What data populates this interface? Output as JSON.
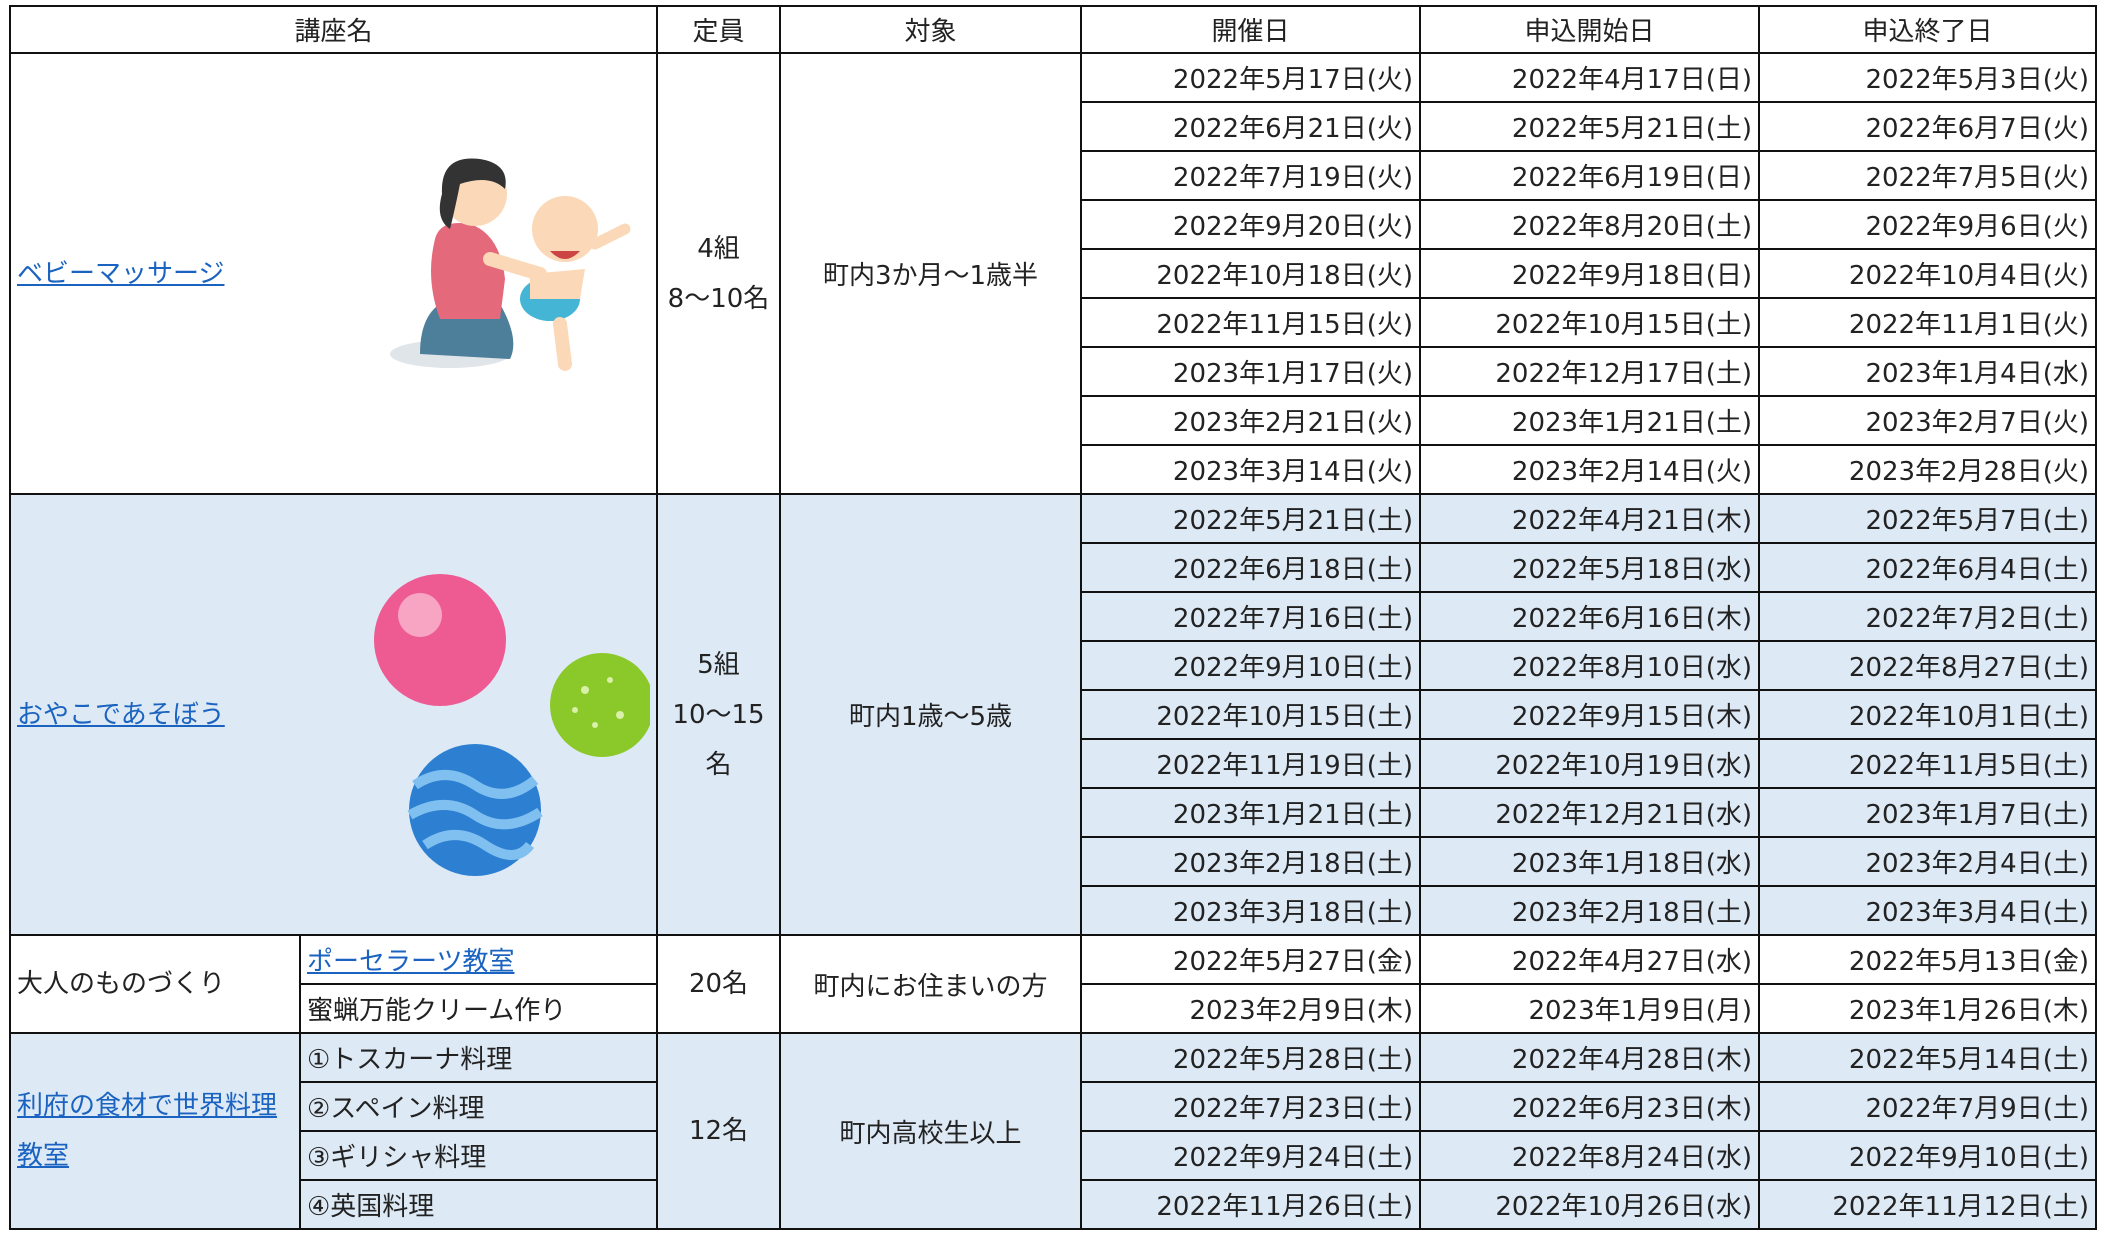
{
  "table": {
    "columns": [
      "講座名",
      "定員",
      "対象",
      "開催日",
      "申込開始日",
      "申込終了日"
    ],
    "courses": [
      {
        "name": "ベビーマッサージ",
        "link": true,
        "color": "#ffffff",
        "capacity": [
          "4組",
          "8～10名"
        ],
        "target": "町内3か月～1歳半",
        "sessions": [
          [
            "2022年5月17日(火)",
            "2022年4月17日(日)",
            "2022年5月3日(火)"
          ],
          [
            "2022年6月21日(火)",
            "2022年5月21日(土)",
            "2022年6月7日(火)"
          ],
          [
            "2022年7月19日(火)",
            "2022年6月19日(日)",
            "2022年7月5日(火)"
          ],
          [
            "2022年9月20日(火)",
            "2022年8月20日(土)",
            "2022年9月6日(火)"
          ],
          [
            "2022年10月18日(火)",
            "2022年9月18日(日)",
            "2022年10月4日(火)"
          ],
          [
            "2022年11月15日(火)",
            "2022年10月15日(土)",
            "2022年11月1日(火)"
          ],
          [
            "2023年1月17日(火)",
            "2022年12月17日(土)",
            "2023年1月4日(水)"
          ],
          [
            "2023年2月21日(火)",
            "2023年1月21日(土)",
            "2023年2月7日(火)"
          ],
          [
            "2023年3月14日(火)",
            "2023年2月14日(火)",
            "2023年2月28日(火)"
          ]
        ]
      },
      {
        "name": "おやこであそぼう",
        "link": true,
        "color": "#dde9f5",
        "capacity": [
          "5組",
          "10～15",
          "名"
        ],
        "target": "町内1歳～5歳",
        "sessions": [
          [
            "2022年5月21日(土)",
            "2022年4月21日(木)",
            "2022年5月7日(土)"
          ],
          [
            "2022年6月18日(土)",
            "2022年5月18日(水)",
            "2022年6月4日(土)"
          ],
          [
            "2022年7月16日(土)",
            "2022年6月16日(木)",
            "2022年7月2日(土)"
          ],
          [
            "2022年9月10日(土)",
            "2022年8月10日(水)",
            "2022年8月27日(土)"
          ],
          [
            "2022年10月15日(土)",
            "2022年9月15日(木)",
            "2022年10月1日(土)"
          ],
          [
            "2022年11月19日(土)",
            "2022年10月19日(水)",
            "2022年11月5日(土)"
          ],
          [
            "2023年1月21日(土)",
            "2022年12月21日(水)",
            "2023年1月7日(土)"
          ],
          [
            "2023年2月18日(土)",
            "2023年1月18日(水)",
            "2023年2月4日(土)"
          ],
          [
            "2023年3月18日(土)",
            "2023年2月18日(土)",
            "2023年3月4日(土)"
          ]
        ]
      },
      {
        "name": "大人のものづくり",
        "link": false,
        "color": "#ffffff",
        "capacity": [
          "20名"
        ],
        "target": "町内にお住まいの方",
        "subcourses": [
          {
            "name": "ポーセラーツ教室",
            "link": true,
            "sessions": [
              [
                "2022年5月27日(金)",
                "2022年4月27日(水)",
                "2022年5月13日(金)"
              ]
            ]
          },
          {
            "name": "蜜蝋万能クリーム作り",
            "link": false,
            "sessions": [
              [
                "2023年2月9日(木)",
                "2023年1月9日(月)",
                "2023年1月26日(木)"
              ]
            ]
          }
        ]
      },
      {
        "name": "利府の食材で世界料理教室",
        "link": true,
        "color": "#dde9f5",
        "capacity": [
          "12名"
        ],
        "target": "町内高校生以上",
        "subcourses": [
          {
            "name": "①トスカーナ料理",
            "link": false,
            "sessions": [
              [
                "2022年5月28日(土)",
                "2022年4月28日(木)",
                "2022年5月14日(土)"
              ]
            ]
          },
          {
            "name": "②スペイン料理",
            "link": false,
            "sessions": [
              [
                "2022年7月23日(土)",
                "2022年6月23日(木)",
                "2022年7月9日(土)"
              ]
            ]
          },
          {
            "name": "③ギリシャ料理",
            "link": false,
            "sessions": [
              [
                "2022年9月24日(土)",
                "2022年8月24日(水)",
                "2022年9月10日(土)"
              ]
            ]
          },
          {
            "name": "④英国料理",
            "link": false,
            "sessions": [
              [
                "2022年11月26日(土)",
                "2022年10月26日(水)",
                "2022年11月12日(土)"
              ]
            ]
          }
        ]
      }
    ]
  }
}
